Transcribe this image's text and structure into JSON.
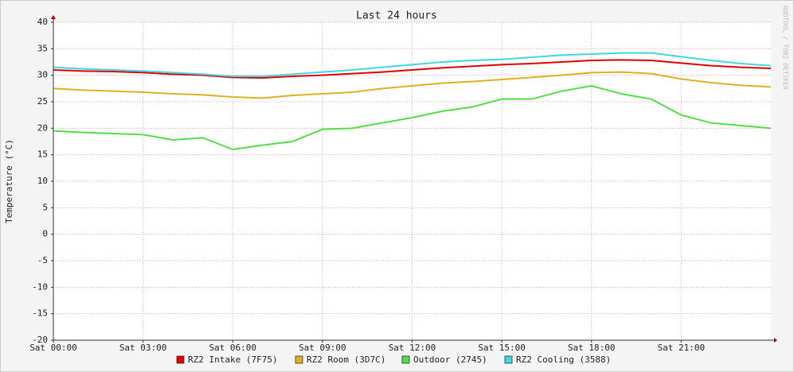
{
  "chart_data": {
    "type": "line",
    "title": "Last 24 hours",
    "y_label": "Temperature (°C)",
    "side_text": "RRDTOOL / TOBI OETIKER",
    "x": [
      0,
      1,
      2,
      3,
      4,
      5,
      6,
      7,
      8,
      9,
      10,
      11,
      12,
      13,
      14,
      15,
      16,
      17,
      18,
      19,
      20,
      21,
      22,
      23,
      24
    ],
    "xlim": [
      0,
      24
    ],
    "xticks": [
      {
        "value": 0,
        "label": "Sat 00:00"
      },
      {
        "value": 3,
        "label": "Sat 03:00"
      },
      {
        "value": 6,
        "label": "Sat 06:00"
      },
      {
        "value": 9,
        "label": "Sat 09:00"
      },
      {
        "value": 12,
        "label": "Sat 12:00"
      },
      {
        "value": 15,
        "label": "Sat 15:00"
      },
      {
        "value": 18,
        "label": "Sat 18:00"
      },
      {
        "value": 21,
        "label": "Sat 21:00"
      }
    ],
    "ylim": [
      -20,
      40
    ],
    "yticks": [
      -20,
      -15,
      -10,
      -5,
      0,
      5,
      10,
      15,
      20,
      25,
      30,
      35,
      40
    ],
    "grid": true,
    "series": [
      {
        "name": "RZ2 Intake (7F75)",
        "color": "#e00000",
        "values": [
          31,
          30.8,
          30.7,
          30.5,
          30.2,
          30,
          29.6,
          29.5,
          29.8,
          30,
          30.3,
          30.6,
          31,
          31.4,
          31.7,
          32,
          32.2,
          32.5,
          32.8,
          32.9,
          32.8,
          32.3,
          31.8,
          31.5,
          31.3
        ]
      },
      {
        "name": "RZ2 Room (3D7C)",
        "color": "#e0b020",
        "values": [
          27.5,
          27.2,
          27,
          26.8,
          26.5,
          26.3,
          25.9,
          25.7,
          26.2,
          26.5,
          26.8,
          27.5,
          28,
          28.5,
          28.8,
          29.2,
          29.6,
          30,
          30.5,
          30.6,
          30.3,
          29.3,
          28.6,
          28.1,
          27.8
        ]
      },
      {
        "name": "Outdoor (2745)",
        "color": "#50e040",
        "values": [
          19.5,
          19.2,
          19,
          18.8,
          17.8,
          18.2,
          16,
          16.8,
          17.5,
          19.8,
          20,
          21,
          22,
          23.2,
          24,
          25.5,
          25.5,
          27,
          28,
          26.5,
          25.5,
          22.5,
          21,
          20.5,
          20
        ]
      },
      {
        "name": "RZ2 Cooling (3588)",
        "color": "#40d8e0",
        "values": [
          31.5,
          31.2,
          31,
          30.8,
          30.5,
          30.2,
          29.8,
          29.8,
          30.2,
          30.6,
          31,
          31.5,
          32,
          32.5,
          32.8,
          33,
          33.4,
          33.8,
          34,
          34.2,
          34.2,
          33.5,
          32.8,
          32.2,
          31.8
        ]
      }
    ]
  }
}
